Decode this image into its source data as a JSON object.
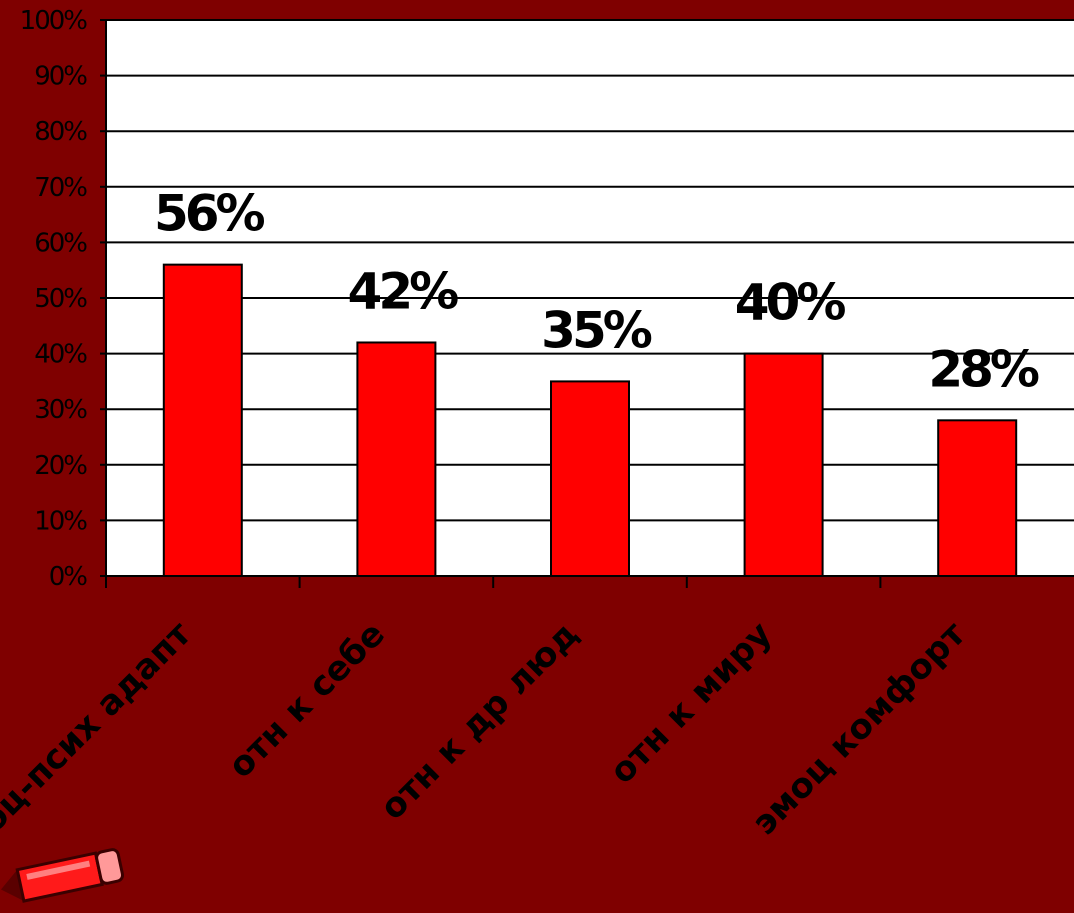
{
  "chart_data": {
    "type": "bar",
    "categories": [
      "соц-псих адапт",
      "отн к себе",
      "отн к др люд",
      "отн к миру",
      "эмоц комфорт"
    ],
    "values": [
      56,
      42,
      35,
      40,
      28
    ],
    "data_labels": [
      "56%",
      "42%",
      "35%",
      "40%",
      "28%"
    ],
    "y_ticks": [
      "0%",
      "10%",
      "20%",
      "30%",
      "40%",
      "50%",
      "60%",
      "70%",
      "80%",
      "90%",
      "100%"
    ],
    "ylim": [
      0,
      100
    ],
    "grid": true,
    "legend": "none",
    "colors": {
      "bar": "#ff0000",
      "plot_background": "#ffffff",
      "page_background": "#7f0000",
      "text": "#000000",
      "gridline": "#000000"
    }
  },
  "decoration": {
    "icon": "pencil-icon"
  }
}
